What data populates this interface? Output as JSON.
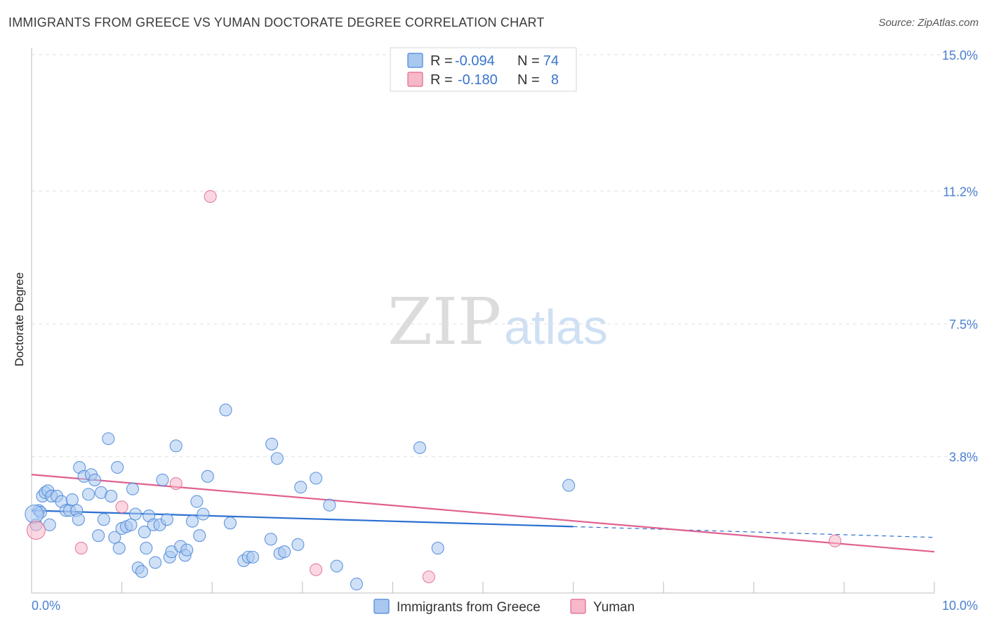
{
  "title": "IMMIGRANTS FROM GREECE VS YUMAN DOCTORATE DEGREE CORRELATION CHART",
  "source": "Source: ZipAtlas.com",
  "watermark": {
    "zip": "ZIP",
    "atlas": "atlas"
  },
  "legend_box": {
    "rows": [
      {
        "r_label": "R =",
        "r_value": "-0.094",
        "n_label": "N =",
        "n_value": "74",
        "color": "#a9c8f0"
      },
      {
        "r_label": "R =",
        "r_value": "-0.180",
        "n_label": "N =",
        "n_value": "8",
        "color": "#f7b8c9"
      }
    ]
  },
  "bottom_legend": [
    {
      "label": "Immigrants from Greece",
      "color": "#a9c8f0"
    },
    {
      "label": "Yuman",
      "color": "#f7b8c9"
    }
  ],
  "chart_data": {
    "type": "scatter",
    "title": "IMMIGRANTS FROM GREECE VS YUMAN DOCTORATE DEGREE CORRELATION CHART",
    "xlabel": "",
    "ylabel": "Doctorate Degree",
    "xlim": [
      0,
      10
    ],
    "ylim": [
      0,
      15
    ],
    "x_tick_labels": [
      "0.0%",
      "10.0%"
    ],
    "y_ticks": [
      3.8,
      7.5,
      11.2,
      15.0
    ],
    "y_tick_labels": [
      "3.8%",
      "7.5%",
      "11.2%",
      "15.0%"
    ],
    "series": [
      {
        "name": "Immigrants from Greece",
        "color": "#4a86d8",
        "fill": "#a9c8f0",
        "trend": {
          "x0": 0.0,
          "y0": 2.3,
          "x1": 6.0,
          "y1": 1.85,
          "dash_to_x": 10.0,
          "dash_to_y": 1.55,
          "color": "#2a6fd0"
        },
        "points": [
          [
            0.05,
            1.9
          ],
          [
            0.08,
            2.3
          ],
          [
            0.1,
            2.25
          ],
          [
            0.12,
            2.7
          ],
          [
            0.15,
            2.8
          ],
          [
            0.18,
            2.85
          ],
          [
            0.2,
            1.9
          ],
          [
            0.22,
            2.7
          ],
          [
            0.28,
            2.7
          ],
          [
            0.33,
            2.55
          ],
          [
            0.38,
            2.3
          ],
          [
            0.42,
            2.3
          ],
          [
            0.45,
            2.6
          ],
          [
            0.5,
            2.3
          ],
          [
            0.52,
            2.05
          ],
          [
            0.53,
            3.5
          ],
          [
            0.58,
            3.25
          ],
          [
            0.63,
            2.75
          ],
          [
            0.66,
            3.3
          ],
          [
            0.7,
            3.15
          ],
          [
            0.74,
            1.6
          ],
          [
            0.77,
            2.8
          ],
          [
            0.8,
            2.05
          ],
          [
            0.85,
            4.3
          ],
          [
            0.88,
            2.7
          ],
          [
            0.92,
            1.55
          ],
          [
            0.95,
            3.5
          ],
          [
            0.97,
            1.25
          ],
          [
            1.0,
            1.8
          ],
          [
            1.05,
            1.85
          ],
          [
            1.1,
            1.9
          ],
          [
            1.12,
            2.9
          ],
          [
            1.15,
            2.2
          ],
          [
            1.18,
            0.7
          ],
          [
            1.22,
            0.6
          ],
          [
            1.25,
            1.7
          ],
          [
            1.27,
            1.25
          ],
          [
            1.3,
            2.15
          ],
          [
            1.35,
            1.9
          ],
          [
            1.37,
            0.85
          ],
          [
            1.42,
            1.9
          ],
          [
            1.45,
            3.15
          ],
          [
            1.5,
            2.05
          ],
          [
            1.53,
            1.0
          ],
          [
            1.55,
            1.15
          ],
          [
            1.6,
            4.1
          ],
          [
            1.65,
            1.3
          ],
          [
            1.7,
            1.05
          ],
          [
            1.72,
            1.2
          ],
          [
            1.78,
            2.0
          ],
          [
            1.83,
            2.55
          ],
          [
            1.86,
            1.6
          ],
          [
            1.9,
            2.2
          ],
          [
            1.95,
            3.25
          ],
          [
            2.15,
            5.1
          ],
          [
            2.2,
            1.95
          ],
          [
            2.35,
            0.9
          ],
          [
            2.4,
            1.0
          ],
          [
            2.45,
            1.0
          ],
          [
            2.65,
            1.5
          ],
          [
            2.66,
            4.15
          ],
          [
            2.72,
            3.75
          ],
          [
            2.75,
            1.1
          ],
          [
            2.8,
            1.15
          ],
          [
            2.95,
            1.35
          ],
          [
            2.98,
            2.95
          ],
          [
            3.15,
            3.2
          ],
          [
            3.3,
            2.45
          ],
          [
            3.38,
            0.75
          ],
          [
            3.6,
            0.25
          ],
          [
            4.3,
            4.05
          ],
          [
            4.5,
            1.25
          ],
          [
            5.95,
            3.0
          ],
          [
            0.03,
            2.2
          ]
        ]
      },
      {
        "name": "Yuman",
        "color": "#e06a92",
        "fill": "#f7b8c9",
        "trend": {
          "x0": 0.0,
          "y0": 3.3,
          "x1": 10.0,
          "y1": 1.15,
          "color": "#e0608e"
        },
        "points": [
          [
            0.05,
            1.75
          ],
          [
            0.55,
            1.25
          ],
          [
            1.0,
            2.4
          ],
          [
            1.6,
            3.05
          ],
          [
            1.98,
            11.05
          ],
          [
            3.15,
            0.65
          ],
          [
            4.4,
            0.45
          ],
          [
            8.9,
            1.45
          ]
        ]
      }
    ]
  }
}
